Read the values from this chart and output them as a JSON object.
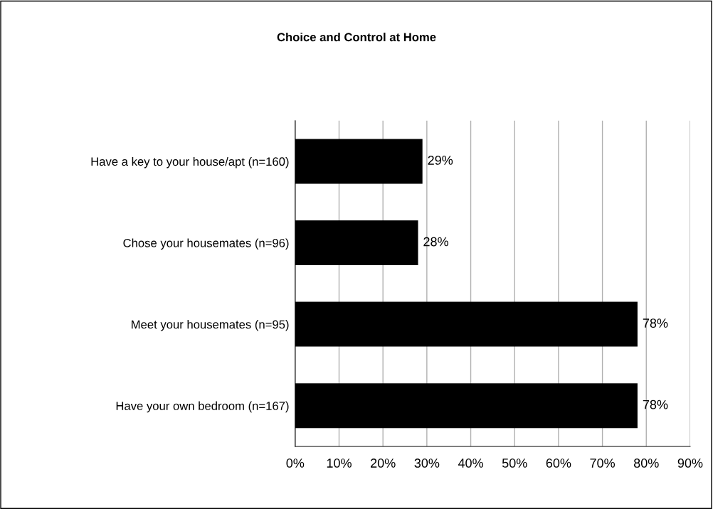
{
  "chart_data": {
    "type": "bar",
    "orientation": "horizontal",
    "title": "Choice and Control at Home",
    "categories": [
      "Have a key to your house/apt (n=160)",
      "Chose your housemates (n=96)",
      "Meet your housemates (n=95)",
      "Have your own bedroom (n=167)"
    ],
    "values": [
      29,
      28,
      78,
      78
    ],
    "value_labels": [
      "29%",
      "28%",
      "78%",
      "78%"
    ],
    "color": "#000000",
    "xlim": [
      0,
      90
    ],
    "xticks": [
      {
        "value": 0,
        "label": "0%"
      },
      {
        "value": 10,
        "label": "10%"
      },
      {
        "value": 20,
        "label": "20%"
      },
      {
        "value": 30,
        "label": "30%"
      },
      {
        "value": 40,
        "label": "40%"
      },
      {
        "value": 50,
        "label": "50%"
      },
      {
        "value": 60,
        "label": "60%"
      },
      {
        "value": 70,
        "label": "70%"
      },
      {
        "value": 80,
        "label": "80%"
      },
      {
        "value": 90,
        "label": "90%"
      }
    ],
    "grid": "x"
  }
}
